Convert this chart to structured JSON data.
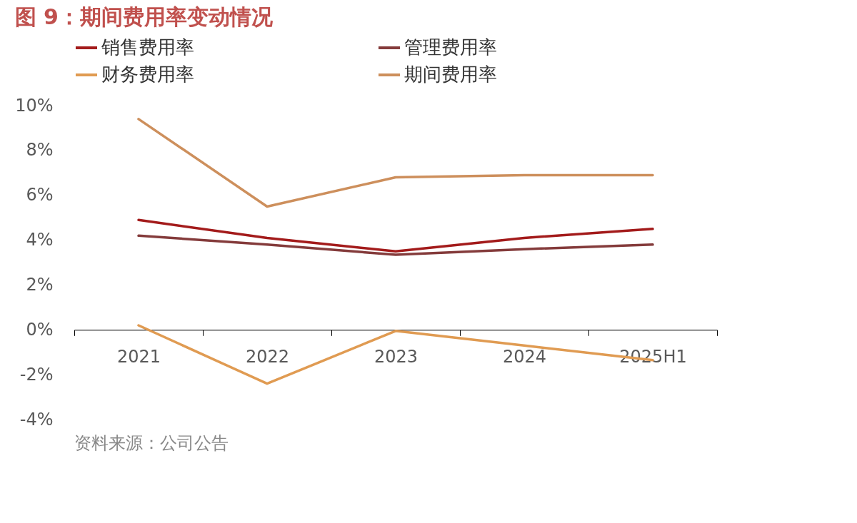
{
  "chart_data": {
    "type": "line",
    "title": "图 9：期间费用率变动情况",
    "categories": [
      "2021",
      "2022",
      "2023",
      "2024",
      "2025H1"
    ],
    "series": [
      {
        "name": "销售费用率",
        "color": "#a31b1b",
        "values": [
          4.9,
          4.1,
          3.5,
          4.1,
          4.5
        ]
      },
      {
        "name": "管理费用率",
        "color": "#843b3b",
        "values": [
          4.2,
          3.8,
          3.35,
          3.6,
          3.8
        ]
      },
      {
        "name": "财务费用率",
        "color": "#e09b52",
        "values": [
          0.2,
          -2.4,
          -0.05,
          -0.7,
          -1.35
        ]
      },
      {
        "name": "期间费用率",
        "color": "#cd8f5c",
        "values": [
          9.4,
          5.5,
          6.8,
          6.9,
          6.9
        ]
      }
    ],
    "ylim": [
      -4,
      10
    ],
    "yticks": [
      {
        "value": -4,
        "label": "-4%"
      },
      {
        "value": -2,
        "label": "-2%"
      },
      {
        "value": 0,
        "label": "0%"
      },
      {
        "value": 2,
        "label": "2%"
      },
      {
        "value": 4,
        "label": "4%"
      },
      {
        "value": 6,
        "label": "6%"
      },
      {
        "value": 8,
        "label": "8%"
      },
      {
        "value": 10,
        "label": "10%"
      }
    ],
    "grid": false,
    "legend": "top",
    "marker": "none",
    "line_style": "solid",
    "annotations": [
      "资料来源：公司公告"
    ]
  }
}
